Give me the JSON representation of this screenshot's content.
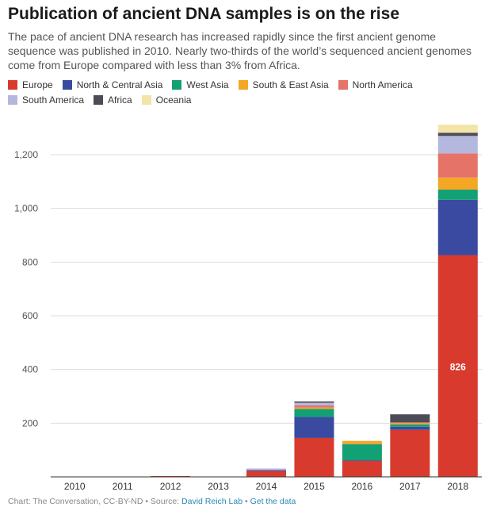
{
  "title": "Publication of ancient DNA samples is on the rise",
  "subtitle": "The pace of ancient DNA research has increased rapidly since the first ancient genome sequence was published in 2010. Nearly two-thirds of the world’s sequenced ancient genomes come from Europe compared with less than 3% from Africa.",
  "footer": {
    "credit": "Chart: The Conversation, CC-BY-ND • Source: ",
    "source_link": "David Reich Lab",
    "sep": " • ",
    "data_link": "Get the data"
  },
  "chart_data": {
    "type": "bar",
    "stacked": true,
    "categories": [
      "2010",
      "2011",
      "2012",
      "2013",
      "2014",
      "2015",
      "2016",
      "2017",
      "2018"
    ],
    "series": [
      {
        "name": "Europe",
        "color": "#d83a2e",
        "values": [
          0,
          0,
          3,
          0,
          22,
          145,
          60,
          175,
          826
        ]
      },
      {
        "name": "North & Central Asia",
        "color": "#3a4aa0",
        "values": [
          0,
          0,
          0,
          0,
          3,
          78,
          2,
          12,
          206
        ]
      },
      {
        "name": "West Asia",
        "color": "#12a075",
        "values": [
          0,
          0,
          0,
          0,
          0,
          30,
          60,
          8,
          38
        ]
      },
      {
        "name": "South & East Asia",
        "color": "#f3a724",
        "values": [
          0,
          0,
          0,
          0,
          0,
          5,
          12,
          5,
          45
        ]
      },
      {
        "name": "North America",
        "color": "#e57368",
        "values": [
          0,
          0,
          0,
          0,
          0,
          8,
          0,
          3,
          90
        ]
      },
      {
        "name": "South America",
        "color": "#b4b8de",
        "values": [
          0,
          0,
          0,
          0,
          6,
          10,
          0,
          0,
          65
        ]
      },
      {
        "name": "Africa",
        "color": "#4c4c58",
        "values": [
          0,
          0,
          0,
          0,
          0,
          5,
          0,
          30,
          12
        ]
      },
      {
        "name": "Oceania",
        "color": "#f3e4a8",
        "values": [
          0,
          0,
          0,
          0,
          0,
          0,
          0,
          0,
          30
        ]
      }
    ],
    "data_labels": [
      {
        "category": "2018",
        "series": "Europe",
        "text": "826"
      }
    ],
    "yticks": [
      200,
      400,
      600,
      800,
      1000,
      1200
    ],
    "ytick_labels": [
      "200",
      "400",
      "600",
      "800",
      "1,000",
      "1,200"
    ],
    "ylim": [
      0,
      1350
    ],
    "grid": true,
    "legend_position": "top",
    "xlabel": "",
    "ylabel": ""
  }
}
